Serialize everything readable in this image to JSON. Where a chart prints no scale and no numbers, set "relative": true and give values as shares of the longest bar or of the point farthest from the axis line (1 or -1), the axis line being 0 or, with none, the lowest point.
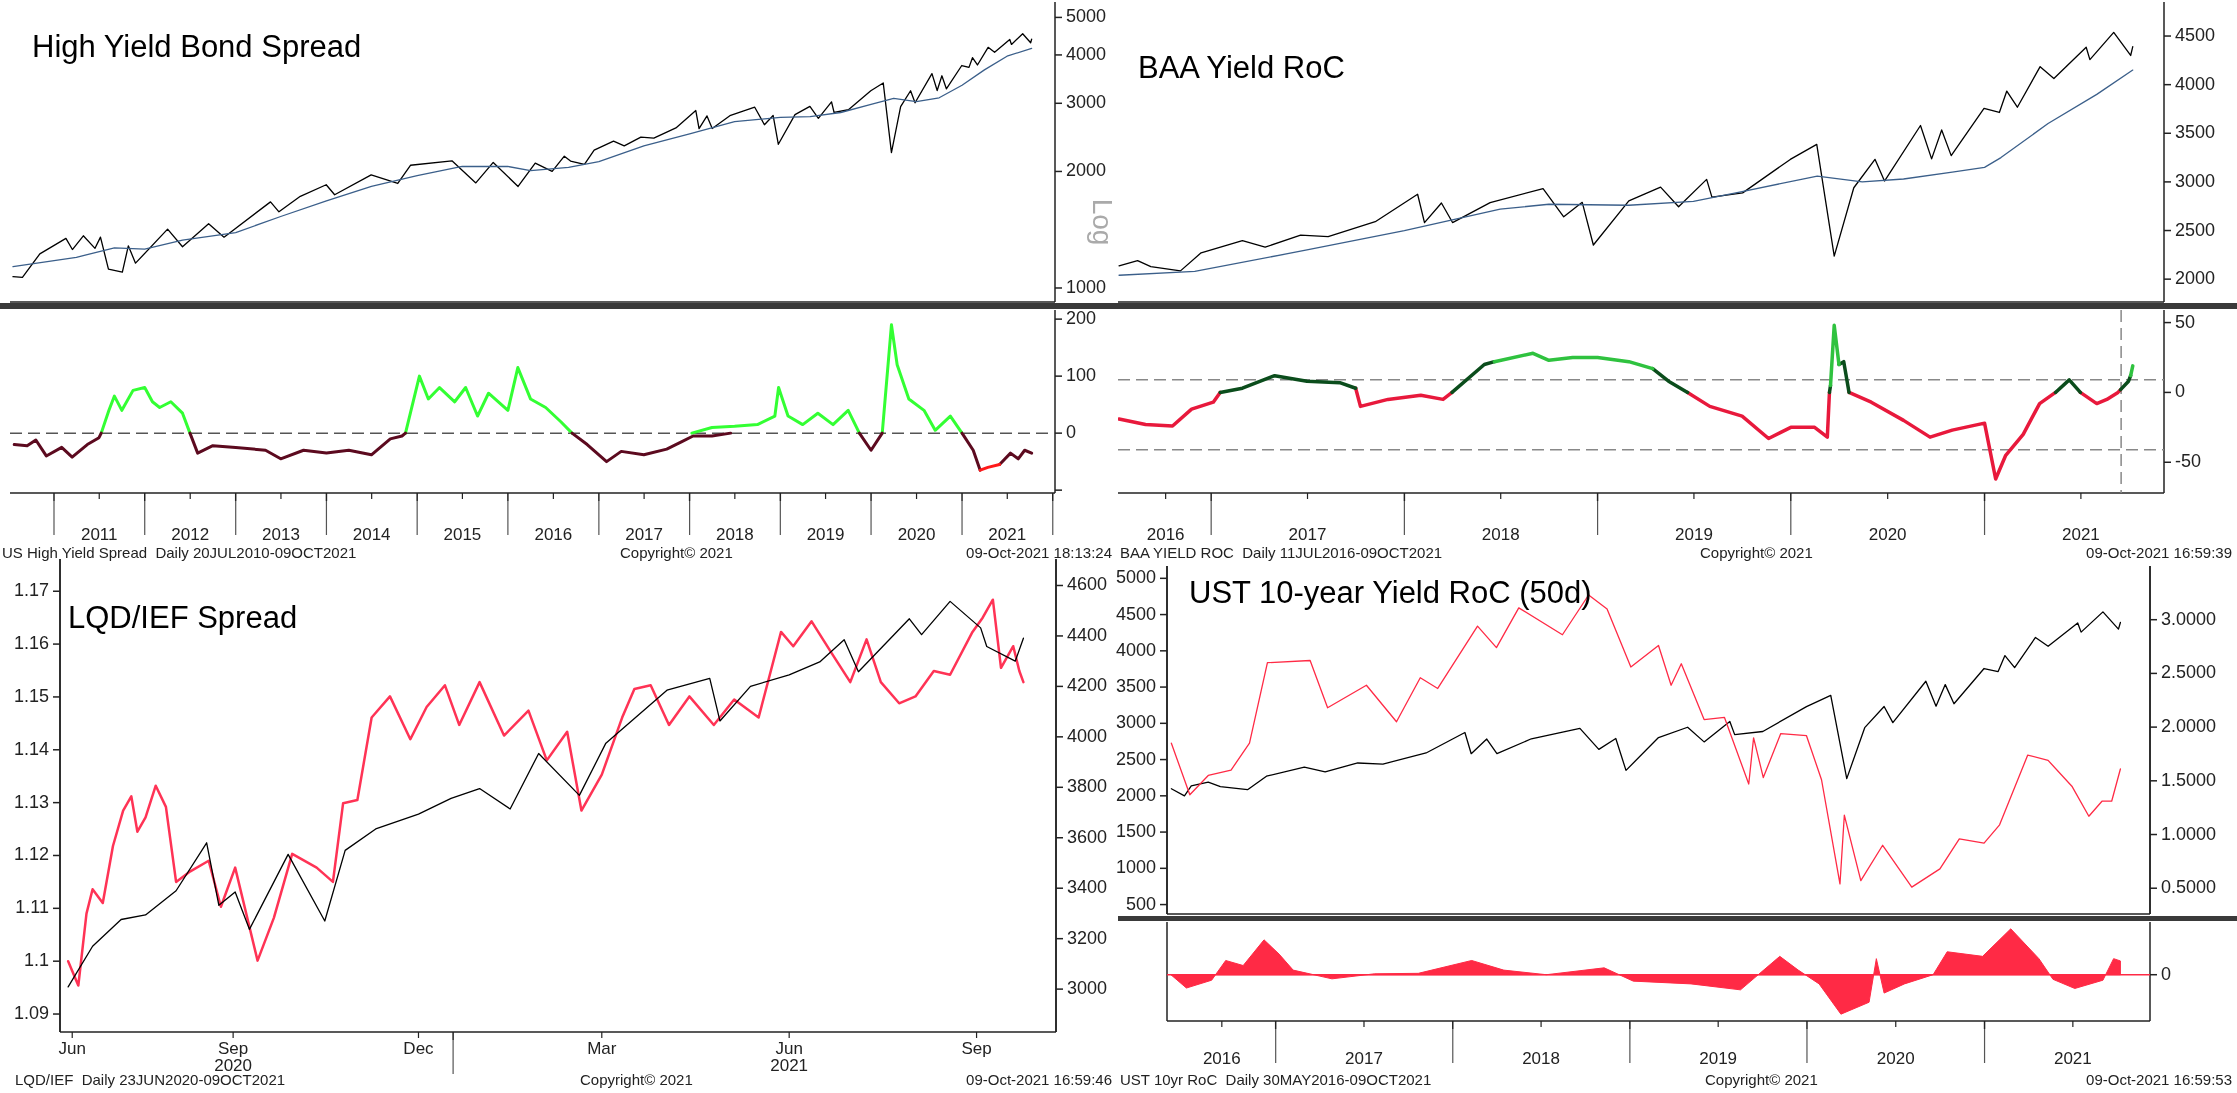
{
  "chart_data": [
    {
      "type": "line",
      "title": "High Yield Bond Spread",
      "ylabel": "Log",
      "log": true,
      "ylim": [
        920,
        5480
      ],
      "yticks": [
        1000,
        2000,
        3000,
        4000,
        5000
      ],
      "xlim": [
        "2010-07-08",
        "2022-01-10"
      ],
      "tick_labels": "y",
      "series": [
        {
          "color": "#000000",
          "x": [
            "2010-07-20",
            "2010-08-27",
            "2010-11-05",
            "2011-02-18",
            "2011-03-16",
            "2011-04-29",
            "2011-06-15",
            "2011-07-07",
            "2011-08-08",
            "2011-10-03",
            "2011-10-27",
            "2011-11-25",
            "2012-04-02",
            "2012-06-01",
            "2012-09-14",
            "2012-11-15",
            "2013-05-21",
            "2013-06-24",
            "2013-09-18",
            "2013-12-31",
            "2014-02-03",
            "2014-06-30",
            "2014-10-15",
            "2014-12-05",
            "2015-05-21",
            "2015-08-25",
            "2015-11-03",
            "2016-02-11",
            "2016-04-20",
            "2016-06-27",
            "2016-08-15",
            "2016-09-09",
            "2016-11-04",
            "2016-12-13",
            "2017-03-01",
            "2017-04-13",
            "2017-06-19",
            "2017-08-10",
            "2017-11-07",
            "2018-01-26",
            "2018-02-08",
            "2018-03-12",
            "2018-04-02",
            "2018-06-12",
            "2018-09-20",
            "2018-10-29",
            "2018-12-03",
            "2018-12-24",
            "2019-03-01",
            "2019-04-30",
            "2019-06-03",
            "2019-07-26",
            "2019-08-05",
            "2019-10-02",
            "2019-12-31",
            "2020-02-19",
            "2020-03-23",
            "2020-04-29",
            "2020-06-08",
            "2020-06-26",
            "2020-09-02",
            "2020-09-23",
            "2020-10-12",
            "2020-10-30",
            "2020-12-31",
            "2021-01-29",
            "2021-02-12",
            "2021-03-04",
            "2021-04-16",
            "2021-05-12",
            "2021-07-12",
            "2021-07-19",
            "2021-09-02",
            "2021-10-04",
            "2021-10-08"
          ],
          "values": [
            1070,
            1065,
            1225,
            1343,
            1257,
            1364,
            1266,
            1353,
            1119,
            1099,
            1285,
            1159,
            1419,
            1278,
            1466,
            1353,
            1669,
            1573,
            1725,
            1848,
            1741,
            1960,
            1862,
            2075,
            2131,
            1868,
            2110,
            1829,
            2102,
            2000,
            2190,
            2128,
            2085,
            2271,
            2396,
            2329,
            2453,
            2438,
            2591,
            2873,
            2581,
            2783,
            2582,
            2787,
            2931,
            2641,
            2790,
            2351,
            2804,
            2946,
            2744,
            3026,
            2844,
            2887,
            3231,
            3386,
            2237,
            2940,
            3232,
            3009,
            3580,
            3237,
            3534,
            3270,
            3756,
            3714,
            3934,
            3768,
            4185,
            4063,
            4385,
            4258,
            4537,
            4300,
            4391
          ]
        },
        {
          "color": "#3b5f8a",
          "x": [
            "2010-07-20",
            "2011-04-01",
            "2011-09-01",
            "2012-01-01",
            "2012-06-01",
            "2013-01-01",
            "2013-07-01",
            "2014-01-01",
            "2014-07-01",
            "2015-01-01",
            "2015-07-01",
            "2016-01-01",
            "2016-04-01",
            "2016-09-01",
            "2017-01-01",
            "2017-07-01",
            "2018-01-01",
            "2018-07-01",
            "2019-01-01",
            "2019-05-01",
            "2019-09-01",
            "2020-01-01",
            "2020-04-01",
            "2020-07-01",
            "2020-10-01",
            "2021-01-01",
            "2021-04-01",
            "2021-07-01",
            "2021-10-08"
          ],
          "values": [
            1136,
            1200,
            1270,
            1260,
            1330,
            1390,
            1530,
            1680,
            1830,
            1950,
            2060,
            2060,
            2010,
            2050,
            2120,
            2330,
            2500,
            2690,
            2760,
            2770,
            2840,
            2980,
            3090,
            3030,
            3100,
            3340,
            3660,
            3970,
            4160
          ]
        }
      ]
    },
    {
      "type": "line",
      "ylim": [
        -105,
        216
      ],
      "yticks": [
        200,
        100,
        0,
        {
          "value": -100,
          "label": null
        }
      ],
      "xlim": [
        "2010-07-08",
        "2022-01-10"
      ],
      "xticks": [
        {
          "value": "2011-01-01",
          "label": null
        },
        {
          "value": "2011-07-02",
          "label": "2011"
        },
        {
          "value": "2012-01-01",
          "label": null
        },
        {
          "value": "2012-07-02",
          "label": "2012"
        },
        {
          "value": "2013-01-01",
          "label": null
        },
        {
          "value": "2013-07-02",
          "label": "2013"
        },
        {
          "value": "2014-01-01",
          "label": null
        },
        {
          "value": "2014-07-02",
          "label": "2014"
        },
        {
          "value": "2015-01-01",
          "label": null
        },
        {
          "value": "2015-07-02",
          "label": "2015"
        },
        {
          "value": "2016-01-01",
          "label": null
        },
        {
          "value": "2016-07-02",
          "label": "2016"
        },
        {
          "value": "2017-01-01",
          "label": null
        },
        {
          "value": "2017-07-02",
          "label": "2017"
        },
        {
          "value": "2018-01-01",
          "label": null
        },
        {
          "value": "2018-07-02",
          "label": "2018"
        },
        {
          "value": "2019-01-01",
          "label": null
        },
        {
          "value": "2019-07-02",
          "label": "2019"
        },
        {
          "value": "2020-01-01",
          "label": null
        },
        {
          "value": "2020-07-02",
          "label": "2020"
        },
        {
          "value": "2021-01-01",
          "label": null
        },
        {
          "value": "2021-07-02",
          "label": "2021"
        },
        {
          "value": "2022-01-01",
          "label": null
        }
      ],
      "ref_lines": [
        {
          "axis": "y",
          "value": 0,
          "color": "#555555",
          "line_style": "dashed"
        }
      ],
      "annotations": [
        "US High Yield Spread  Daily 20JUL2010-09OCT2021",
        "Copyright© 2021",
        "09-Oct-2021 18:13:24"
      ],
      "series": [
        {
          "color": "#33ff33",
          "x": [
            "2011-07-10",
            "2011-08-10",
            "2011-09-01",
            "2011-10-01",
            "2011-11-15",
            "2012-01-01",
            "2012-02-01",
            "2012-03-01",
            "2012-04-15",
            "2012-06-01",
            "2012-07-01",
            "2013-09-01",
            "2014-11-15",
            "2015-01-10",
            "2015-02-15",
            "2015-04-01",
            "2015-06-01",
            "2015-07-15",
            "2015-09-01",
            "2015-10-15",
            "2016-01-01",
            "2016-02-10",
            "2016-04-01",
            "2016-06-01",
            "2016-08-01",
            "2016-09-15",
            "2017-06-01",
            "2018-01-10",
            "2018-04-01",
            "2018-07-01",
            "2018-10-01",
            "2018-12-10",
            "2018-12-25",
            "2019-02-01",
            "2019-04-01",
            "2019-06-01",
            "2019-08-01",
            "2019-10-01",
            "2019-11-15",
            "2019-12-15",
            "2020-02-15",
            "2020-03-23",
            "2020-04-15",
            "2020-06-01",
            "2020-08-01",
            "2020-09-15",
            "2020-11-15",
            "2021-01-01"
          ],
          "values": [
            0,
            40,
            65,
            40,
            75,
            80,
            55,
            45,
            55,
            35,
            0,
            null,
            0,
            100,
            60,
            80,
            55,
            80,
            30,
            70,
            40,
            115,
            60,
            45,
            20,
            0,
            null,
            0,
            10,
            12,
            15,
            30,
            80,
            30,
            15,
            35,
            15,
            40,
            0,
            null,
            0,
            190,
            120,
            60,
            40,
            5,
            30,
            0
          ]
        },
        {
          "color": "#5c0a1f",
          "x": [
            "2010-07-25",
            "2010-09-15",
            "2010-10-20",
            "2010-12-01",
            "2011-02-01",
            "2011-03-15",
            "2011-05-15",
            "2011-07-01",
            "2011-07-10",
            "2012-01-01",
            "2012-07-01",
            "2012-08-01",
            "2012-10-01",
            "2013-01-01",
            "2013-05-01",
            "2013-07-01",
            "2013-10-01",
            "2014-01-01",
            "2014-04-01",
            "2014-07-01",
            "2014-09-15",
            "2014-11-01",
            "2014-11-15",
            "2015-06-01",
            "2016-09-15",
            "2016-11-15",
            "2017-02-01",
            "2017-04-01",
            "2017-07-01",
            "2017-10-01",
            "2017-12-01",
            "2018-01-15",
            "2018-04-01",
            "2018-06-15",
            "2019-01-01",
            "2019-11-15",
            "2020-01-01",
            "2020-02-15",
            "2020-06-01",
            "2021-01-01",
            "2021-02-15",
            "2021-03-15",
            "2021-04-20",
            "2021-06-01",
            "2021-07-15",
            "2021-08-15",
            "2021-09-10",
            "2021-10-08"
          ],
          "values": [
            -20,
            -22,
            -12,
            -40,
            -25,
            -42,
            -20,
            -8,
            0,
            null,
            0,
            -35,
            -22,
            -25,
            -30,
            -45,
            -30,
            -35,
            -30,
            -38,
            -10,
            -5,
            0,
            null,
            0,
            -20,
            -50,
            -32,
            -38,
            -28,
            -15,
            -5,
            -5,
            0,
            null,
            0,
            -30,
            0,
            null,
            0,
            -30,
            -65,
            null,
            -55,
            -35,
            -45,
            -30,
            -35
          ]
        },
        {
          "color": "#ff1a1a",
          "x": [
            "2021-03-15",
            "2021-04-15",
            "2021-06-01"
          ],
          "values": [
            -65,
            -60,
            -55
          ]
        }
      ]
    },
    {
      "type": "line",
      "title": "BAA Yield RoC",
      "ylim": [
        1765,
        4850
      ],
      "yticks": [
        2000,
        2500,
        3000,
        3500,
        4000,
        4500
      ],
      "xlim": [
        "2016-07-09",
        "2021-12-06"
      ],
      "tick_labels": "y",
      "series": [
        {
          "color": "#000000",
          "x": [
            "2016-07-11",
            "2016-08-15",
            "2016-09-09",
            "2016-11-04",
            "2016-12-13",
            "2017-03-01",
            "2017-04-13",
            "2017-06-19",
            "2017-08-10",
            "2017-11-07",
            "2018-01-26",
            "2018-02-08",
            "2018-03-12",
            "2018-04-02",
            "2018-06-12",
            "2018-09-20",
            "2018-10-29",
            "2018-12-03",
            "2018-12-24",
            "2019-03-01",
            "2019-04-30",
            "2019-06-03",
            "2019-07-26",
            "2019-08-05",
            "2019-10-02",
            "2019-12-31",
            "2020-02-19",
            "2020-03-23",
            "2020-04-29",
            "2020-06-08",
            "2020-06-26",
            "2020-09-02",
            "2020-09-23",
            "2020-10-12",
            "2020-10-30",
            "2020-12-31",
            "2021-01-29",
            "2021-02-12",
            "2021-03-04",
            "2021-04-16",
            "2021-05-12",
            "2021-07-12",
            "2021-07-19",
            "2021-09-02",
            "2021-10-04",
            "2021-10-08"
          ],
          "values": [
            2137,
            2190,
            2128,
            2085,
            2271,
            2396,
            2329,
            2453,
            2438,
            2591,
            2873,
            2581,
            2783,
            2582,
            2787,
            2931,
            2641,
            2790,
            2351,
            2804,
            2946,
            2744,
            3026,
            2844,
            2887,
            3231,
            3386,
            2237,
            2940,
            3232,
            3009,
            3580,
            3237,
            3534,
            3270,
            3756,
            3714,
            3934,
            3768,
            4185,
            4063,
            4385,
            4258,
            4537,
            4300,
            4391
          ]
        },
        {
          "color": "#3b5f8a",
          "x": [
            "2016-07-11",
            "2016-12-01",
            "2017-07-01",
            "2018-01-01",
            "2018-07-01",
            "2018-10-01",
            "2019-03-01",
            "2019-07-01",
            "2019-10-01",
            "2020-02-20",
            "2020-05-15",
            "2020-08-01",
            "2020-11-01",
            "2021-01-01",
            "2021-02-01",
            "2021-05-01",
            "2021-08-01",
            "2021-10-08"
          ],
          "values": [
            2040,
            2080,
            2300,
            2500,
            2720,
            2770,
            2760,
            2800,
            2900,
            3060,
            3000,
            3030,
            3100,
            3150,
            3250,
            3600,
            3900,
            4150
          ]
        }
      ]
    },
    {
      "type": "line",
      "ylim": [
        -72,
        59
      ],
      "yticks": [
        50,
        0,
        -50
      ],
      "xlim": [
        "2016-07-09",
        "2021-12-06"
      ],
      "xticks": [
        {
          "value": "2016-10-07",
          "label": "2016"
        },
        {
          "value": "2017-01-01",
          "label": null
        },
        {
          "value": "2017-07-02",
          "label": "2017"
        },
        {
          "value": "2018-01-01",
          "label": null
        },
        {
          "value": "2018-07-02",
          "label": "2018"
        },
        {
          "value": "2019-01-01",
          "label": null
        },
        {
          "value": "2019-07-02",
          "label": "2019"
        },
        {
          "value": "2020-01-01",
          "label": null
        },
        {
          "value": "2020-07-02",
          "label": "2020"
        },
        {
          "value": "2021-01-01",
          "label": null
        },
        {
          "value": "2021-07-02",
          "label": "2021"
        }
      ],
      "ref_lines": [
        {
          "axis": "y",
          "value": 9,
          "color": "#888888",
          "line_style": "dashed"
        },
        {
          "axis": "y",
          "value": -41,
          "color": "#888888",
          "line_style": "dashed"
        },
        {
          "axis": "x",
          "value": "2021-09-16",
          "color": "#888888",
          "line_style": "dashed"
        }
      ],
      "annotations": [
        "BAA YIELD ROC  Daily 11JUL2016-09OCT2021",
        "Copyright© 2021",
        "09-Oct-2021 16:59:39"
      ],
      "series": [
        {
          "color": "#e8193c",
          "x": [
            "2016-07-11",
            "2016-08-30",
            "2016-10-20",
            "2016-11-25",
            "2017-01-05",
            "2017-01-18",
            "2017-05-01",
            "2017-10-01",
            "2017-10-10",
            "2017-12-01",
            "2018-02-01",
            "2018-03-15",
            "2018-04-01",
            "2018-12-01",
            "2019-06-20",
            "2019-08-01",
            "2019-10-01",
            "2019-11-20",
            "2020-01-01",
            "2020-02-15",
            "2020-03-10",
            "2020-03-14",
            "2020-04-05",
            "2020-04-20",
            "2020-06-01",
            "2020-08-01",
            "2020-09-20",
            "2020-11-01",
            "2021-01-01",
            "2021-01-22",
            "2021-02-10",
            "2021-03-15",
            "2021-04-15",
            "2021-05-15",
            "2021-06-10",
            "2021-07-01",
            "2021-08-01",
            "2021-08-20",
            "2021-09-10",
            "2021-09-15"
          ],
          "values": [
            -19,
            -23,
            -24,
            -12,
            -7,
            0,
            null,
            3,
            -10,
            -5,
            -2,
            -5,
            0,
            null,
            0,
            -10,
            -17,
            -33,
            -25,
            -25,
            -32,
            0,
            null,
            0,
            -7,
            -20,
            -32,
            -27,
            -22,
            -62,
            -45,
            -30,
            -8,
            0,
            null,
            0,
            -8,
            -5,
            0,
            2
          ]
        },
        {
          "color": "#0b4d1c",
          "x": [
            "2017-01-18",
            "2017-03-01",
            "2017-05-01",
            "2017-07-01",
            "2017-09-01",
            "2017-10-01",
            "2017-12-01",
            "2018-04-01",
            "2018-06-01",
            "2018-06-20",
            "2018-12-01",
            "2019-04-15",
            "2019-05-15",
            "2019-06-20",
            "2019-12-01",
            "2020-03-14",
            "2020-03-16",
            "2020-03-20",
            "2020-04-01",
            "2020-04-10",
            "2020-04-20",
            "2020-12-01",
            "2021-05-15",
            "2021-06-10",
            "2021-07-01",
            "2021-08-01",
            "2021-09-15",
            "2021-09-30",
            "2021-10-04"
          ],
          "values": [
            0,
            3,
            12,
            8,
            7,
            3,
            null,
            0,
            20,
            22,
            null,
            17,
            8,
            0,
            null,
            0,
            5,
            null,
            20,
            22,
            0,
            null,
            0,
            9,
            0,
            null,
            2,
            8,
            12
          ]
        },
        {
          "color": "#2fc23f",
          "x": [
            "2018-06-20",
            "2018-09-01",
            "2018-10-01",
            "2018-11-15",
            "2019-01-01",
            "2019-03-01",
            "2019-04-15",
            "2019-10-01",
            "2020-03-16",
            "2020-03-23",
            "2020-04-01",
            "2020-10-01",
            "2021-10-04",
            "2021-10-08"
          ],
          "values": [
            22,
            28,
            23,
            25,
            25,
            22,
            17,
            null,
            5,
            48,
            20,
            null,
            12,
            19
          ]
        }
      ]
    },
    {
      "type": "line",
      "title": "LQD/IEF Spread",
      "ylim": [
        1.0866,
        1.1761
      ],
      "yticks": [
        1.09,
        1.1,
        1.11,
        1.12,
        1.13,
        1.14,
        1.15,
        1.16,
        1.17
      ],
      "y2lim": [
        2830,
        4705
      ],
      "y2ticks": [
        3000,
        3200,
        3400,
        3600,
        3800,
        4000,
        4200,
        4400,
        4600
      ],
      "xlim": [
        "2020-06-22",
        "2021-10-24"
      ],
      "xticks": [
        {
          "value": "2020-06-28",
          "label": "Jun"
        },
        {
          "value": "2020-09-15",
          "label": "Sep\n2020"
        },
        {
          "value": "2020-12-15",
          "label": "Dec"
        },
        {
          "value": "2021-01-01",
          "label": null
        },
        {
          "value": "2021-03-15",
          "label": "Mar"
        },
        {
          "value": "2021-06-15",
          "label": "Jun\n2021"
        },
        {
          "value": "2021-09-15",
          "label": "Sep"
        }
      ],
      "annotations": [
        "LQD/IEF  Daily 23JUN2020-09OCT2021",
        "Copyright© 2021",
        "09-Oct-2021 16:59:46"
      ],
      "series": [
        {
          "color": "#ff3355",
          "axis": "y",
          "x": [
            "2020-06-26",
            "2020-07-01",
            "2020-07-05",
            "2020-07-08",
            "2020-07-13",
            "2020-07-18",
            "2020-07-23",
            "2020-07-27",
            "2020-07-30",
            "2020-08-03",
            "2020-08-08",
            "2020-08-13",
            "2020-08-18",
            "2020-08-25",
            "2020-09-03",
            "2020-09-09",
            "2020-09-16",
            "2020-09-27",
            "2020-10-05",
            "2020-10-14",
            "2020-10-26",
            "2020-11-03",
            "2020-11-08",
            "2020-11-15",
            "2020-11-22",
            "2020-12-01",
            "2020-12-11",
            "2020-12-19",
            "2020-12-28",
            "2021-01-04",
            "2021-01-14",
            "2021-01-26",
            "2021-02-07",
            "2021-02-16",
            "2021-02-26",
            "2021-03-05",
            "2021-03-15",
            "2021-03-25",
            "2021-03-31",
            "2021-04-08",
            "2021-04-17",
            "2021-04-27",
            "2021-05-09",
            "2021-05-19",
            "2021-05-31",
            "2021-06-11",
            "2021-06-17",
            "2021-06-26",
            "2021-07-06",
            "2021-07-15",
            "2021-07-23",
            "2021-07-30",
            "2021-08-08",
            "2021-08-16",
            "2021-08-25",
            "2021-09-02",
            "2021-09-13",
            "2021-09-18",
            "2021-09-23",
            "2021-09-27",
            "2021-10-03",
            "2021-10-06",
            "2021-10-08"
          ],
          "values": [
            1.1,
            1.0954,
            1.109,
            1.1136,
            1.111,
            1.1218,
            1.1285,
            1.1312,
            1.1245,
            1.1272,
            1.1332,
            1.1292,
            1.115,
            1.117,
            1.119,
            1.1103,
            1.1177,
            1.1001,
            1.1082,
            1.1203,
            1.1177,
            1.115,
            1.1299,
            1.1305,
            1.1461,
            1.1501,
            1.142,
            1.1481,
            1.1522,
            1.1447,
            1.1528,
            1.1427,
            1.1474,
            1.138,
            1.1434,
            1.1285,
            1.1353,
            1.1461,
            1.1515,
            1.1522,
            1.1447,
            1.1501,
            1.1447,
            1.1495,
            1.1461,
            1.1623,
            1.1596,
            1.1643,
            1.1582,
            1.1528,
            1.1609,
            1.1528,
            1.1488,
            1.1501,
            1.1549,
            1.1542,
            1.1623,
            1.165,
            1.1684,
            1.1555,
            1.1596,
            1.1549,
            1.1528
          ]
        },
        {
          "color": "#000000",
          "axis": "y2",
          "x": [
            "2020-06-26",
            "2020-07-08",
            "2020-07-22",
            "2020-08-03",
            "2020-08-18",
            "2020-09-02",
            "2020-09-08",
            "2020-09-16",
            "2020-09-23",
            "2020-10-12",
            "2020-10-30",
            "2020-11-09",
            "2020-11-24",
            "2020-12-15",
            "2020-12-31",
            "2021-01-14",
            "2021-01-29",
            "2021-02-12",
            "2021-03-04",
            "2021-03-17",
            "2021-04-16",
            "2021-05-07",
            "2021-05-12",
            "2021-05-27",
            "2021-06-15",
            "2021-06-30",
            "2021-07-12",
            "2021-07-19",
            "2021-08-13",
            "2021-08-19",
            "2021-09-02",
            "2021-09-17",
            "2021-09-20",
            "2021-10-04",
            "2021-10-08"
          ],
          "values": [
            3009,
            3170,
            3276,
            3294,
            3390,
            3580,
            3332,
            3385,
            3237,
            3534,
            3270,
            3550,
            3635,
            3694,
            3756,
            3795,
            3714,
            3934,
            3768,
            3975,
            4185,
            4232,
            4063,
            4200,
            4246,
            4297,
            4385,
            4258,
            4468,
            4405,
            4537,
            4432,
            4358,
            4300,
            4391
          ]
        }
      ]
    },
    {
      "type": "line",
      "title": "UST 10-year Yield RoC (50d)",
      "ylim": [
        370,
        5170
      ],
      "yticks": [
        500,
        1000,
        1500,
        2000,
        2500,
        3000,
        3500,
        4000,
        4500,
        5000
      ],
      "y2lim": [
        0.26,
        3.5
      ],
      "y2ticks": [
        {
          "value": 0.5,
          "label": "0.5000"
        },
        {
          "value": 1,
          "label": "1.0000"
        },
        {
          "value": 1.5,
          "label": "1.5000"
        },
        {
          "value": 2,
          "label": "2.0000"
        },
        {
          "value": 2.5,
          "label": "2.5000"
        },
        {
          "value": 3,
          "label": "3.0000"
        }
      ],
      "xlim": [
        "2016-05-22",
        "2021-12-08"
      ],
      "tick_labels": "y",
      "series": [
        {
          "color": "#000000",
          "axis": "y",
          "x": [
            "2016-05-31",
            "2016-06-27",
            "2016-07-11",
            "2016-08-15",
            "2016-09-09",
            "2016-11-04",
            "2016-12-13",
            "2017-03-01",
            "2017-04-13",
            "2017-06-19",
            "2017-08-10",
            "2017-11-07",
            "2018-01-26",
            "2018-02-08",
            "2018-03-12",
            "2018-04-02",
            "2018-06-12",
            "2018-09-20",
            "2018-10-29",
            "2018-12-03",
            "2018-12-24",
            "2019-03-01",
            "2019-04-30",
            "2019-06-03",
            "2019-07-26",
            "2019-08-05",
            "2019-10-02",
            "2019-12-31",
            "2020-02-19",
            "2020-03-23",
            "2020-04-29",
            "2020-06-08",
            "2020-06-26",
            "2020-09-02",
            "2020-09-23",
            "2020-10-12",
            "2020-10-30",
            "2020-12-31",
            "2021-01-29",
            "2021-02-12",
            "2021-03-04",
            "2021-04-16",
            "2021-05-12",
            "2021-07-12",
            "2021-07-19",
            "2021-09-02",
            "2021-10-04",
            "2021-10-08"
          ],
          "values": [
            2097,
            2000,
            2137,
            2190,
            2128,
            2085,
            2271,
            2396,
            2329,
            2453,
            2438,
            2591,
            2873,
            2581,
            2783,
            2582,
            2787,
            2931,
            2641,
            2790,
            2351,
            2804,
            2946,
            2744,
            3026,
            2844,
            2887,
            3231,
            3386,
            2237,
            2940,
            3232,
            3009,
            3580,
            3237,
            3534,
            3270,
            3756,
            3714,
            3934,
            3768,
            4185,
            4063,
            4385,
            4258,
            4537,
            4300,
            4391
          ]
        },
        {
          "color": "#ff2a45",
          "axis": "y2",
          "x": [
            "2016-05-31",
            "2016-07-08",
            "2016-08-15",
            "2016-10-01",
            "2016-11-08",
            "2016-12-15",
            "2017-03-13",
            "2017-04-18",
            "2017-07-07",
            "2017-09-07",
            "2017-10-26",
            "2017-12-01",
            "2018-02-21",
            "2018-04-01",
            "2018-05-17",
            "2018-08-15",
            "2018-10-08",
            "2018-11-15",
            "2019-01-03",
            "2019-03-01",
            "2019-03-27",
            "2019-04-17",
            "2019-06-03",
            "2019-07-15",
            "2019-09-03",
            "2019-09-13",
            "2019-10-03",
            "2019-11-08",
            "2019-12-31",
            "2020-01-31",
            "2020-03-09",
            "2020-03-18",
            "2020-04-21",
            "2020-06-05",
            "2020-08-04",
            "2020-10-01",
            "2020-11-10",
            "2020-12-31",
            "2021-02-01",
            "2021-03-31",
            "2021-05-12",
            "2021-06-30",
            "2021-08-04",
            "2021-08-31",
            "2021-09-20",
            "2021-10-08"
          ],
          "values": [
            1.85,
            1.37,
            1.55,
            1.6,
            1.85,
            2.6,
            2.62,
            2.18,
            2.39,
            2.05,
            2.46,
            2.36,
            2.94,
            2.74,
            3.11,
            2.86,
            3.23,
            3.1,
            2.56,
            2.76,
            2.39,
            2.59,
            2.07,
            2.09,
            1.47,
            1.9,
            1.53,
            1.94,
            1.92,
            1.51,
            0.54,
            1.18,
            0.57,
            0.9,
            0.51,
            0.68,
            0.96,
            0.92,
            1.09,
            1.74,
            1.69,
            1.45,
            1.17,
            1.31,
            1.31,
            1.61
          ]
        }
      ]
    },
    {
      "type": "area",
      "relative": true,
      "xlim": [
        "2016-05-22",
        "2021-12-08"
      ],
      "xticks": [
        {
          "value": "2016-09-12",
          "label": "2016"
        },
        {
          "value": "2017-01-01",
          "label": null
        },
        {
          "value": "2017-07-02",
          "label": "2017"
        },
        {
          "value": "2018-01-01",
          "label": null
        },
        {
          "value": "2018-07-02",
          "label": "2018"
        },
        {
          "value": "2019-01-01",
          "label": null
        },
        {
          "value": "2019-07-02",
          "label": "2019"
        },
        {
          "value": "2020-01-01",
          "label": null
        },
        {
          "value": "2020-07-02",
          "label": "2020"
        },
        {
          "value": "2021-01-01",
          "label": null
        },
        {
          "value": "2021-07-02",
          "label": "2021"
        }
      ],
      "ref_lines": [
        {
          "axis": "y",
          "value": 0,
          "label": "0",
          "color": "#ff2a45"
        }
      ],
      "annotations": [
        "UST 10yr RoC  Daily 30MAY2016-09OCT2021",
        "Copyright© 2021",
        "09-Oct-2021 16:59:53"
      ],
      "series": [
        {
          "color": "#ff2a45",
          "x": [
            "2016-05-30",
            "2016-07-01",
            "2016-08-22",
            "2016-09-20",
            "2016-10-26",
            "2016-12-08",
            "2017-01-08",
            "2017-02-06",
            "2017-04-27",
            "2017-07-24",
            "2017-10-22",
            "2018-02-09",
            "2018-04-16",
            "2018-07-13",
            "2018-11-09",
            "2019-01-08",
            "2019-05-07",
            "2019-08-17",
            "2019-11-06",
            "2019-12-14",
            "2020-01-26",
            "2020-03-11",
            "2020-05-08",
            "2020-05-23",
            "2020-06-08",
            "2020-07-20",
            "2020-09-17",
            "2020-10-16",
            "2020-12-28",
            "2021-02-24",
            "2021-04-23",
            "2021-05-22",
            "2021-07-06",
            "2021-09-02",
            "2021-09-24",
            "2021-10-08"
          ],
          "values": [
            0,
            -0.29,
            -0.12,
            0.31,
            0.2,
            0.76,
            0.45,
            0.1,
            -0.09,
            0.02,
            0.03,
            0.31,
            0.1,
            0,
            0.15,
            -0.14,
            -0.2,
            -0.33,
            0.4,
            0.1,
            -0.2,
            -0.86,
            -0.6,
            0.35,
            -0.4,
            -0.2,
            0,
            0.5,
            0.4,
            1,
            0.35,
            -0.1,
            -0.3,
            -0.12,
            0.35,
            0.3
          ]
        }
      ]
    }
  ]
}
